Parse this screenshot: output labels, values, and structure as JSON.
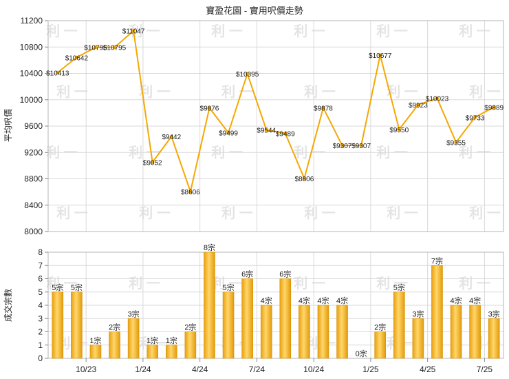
{
  "chart_data": [
    {
      "type": "line",
      "title": "寶盈花園 - 實用呎價走勢",
      "ylabel": "平均呎價",
      "ylim": [
        8000,
        11200
      ],
      "yticks": [
        8000,
        8400,
        8800,
        9200,
        9600,
        10000,
        10400,
        10800,
        11200
      ],
      "grid": true,
      "color": "#F5A800",
      "values": [
        10413,
        10642,
        10795,
        10795,
        11047,
        9052,
        9442,
        8606,
        9876,
        9499,
        10395,
        9544,
        9489,
        8806,
        9878,
        9307,
        9307,
        10677,
        9550,
        9923,
        10023,
        9355,
        9733,
        9889
      ],
      "labels": [
        "$10413",
        "$10642",
        "$10795",
        "$10795",
        "$11047",
        "$9052",
        "$9442",
        "$8606",
        "$9876",
        "$9499",
        "$10395",
        "$9544",
        "$9489",
        "$8806",
        "$9878",
        "$9307",
        "$9307",
        "$10677",
        "$9550",
        "$9923",
        "$10023",
        "$9355",
        "$9733",
        "$9889"
      ]
    },
    {
      "type": "bar",
      "ylabel": "成交宗數",
      "ylim": [
        0,
        8
      ],
      "yticks": [
        0,
        1,
        2,
        3,
        4,
        5,
        6,
        7,
        8
      ],
      "grid": true,
      "color": "#F5A800",
      "values": [
        5,
        5,
        1,
        2,
        3,
        1,
        1,
        2,
        8,
        5,
        6,
        4,
        6,
        4,
        4,
        4,
        0,
        2,
        5,
        3,
        7,
        4,
        4,
        3
      ],
      "labels": [
        "5宗",
        "5宗",
        "1宗",
        "2宗",
        "3宗",
        "1宗",
        "1宗",
        "2宗",
        "8宗",
        "5宗",
        "6宗",
        "4宗",
        "6宗",
        "4宗",
        "4宗",
        "4宗",
        "0宗",
        "2宗",
        "5宗",
        "3宗",
        "7宗",
        "4宗",
        "4宗",
        "3宗"
      ],
      "xticks": [
        "10/23",
        "1/24",
        "4/24",
        "7/24",
        "10/24",
        "1/25",
        "4/25",
        "7/25"
      ],
      "xtick_after_index": [
        1,
        4,
        7,
        10,
        13,
        16,
        19,
        22
      ]
    }
  ],
  "watermark": "利 一"
}
